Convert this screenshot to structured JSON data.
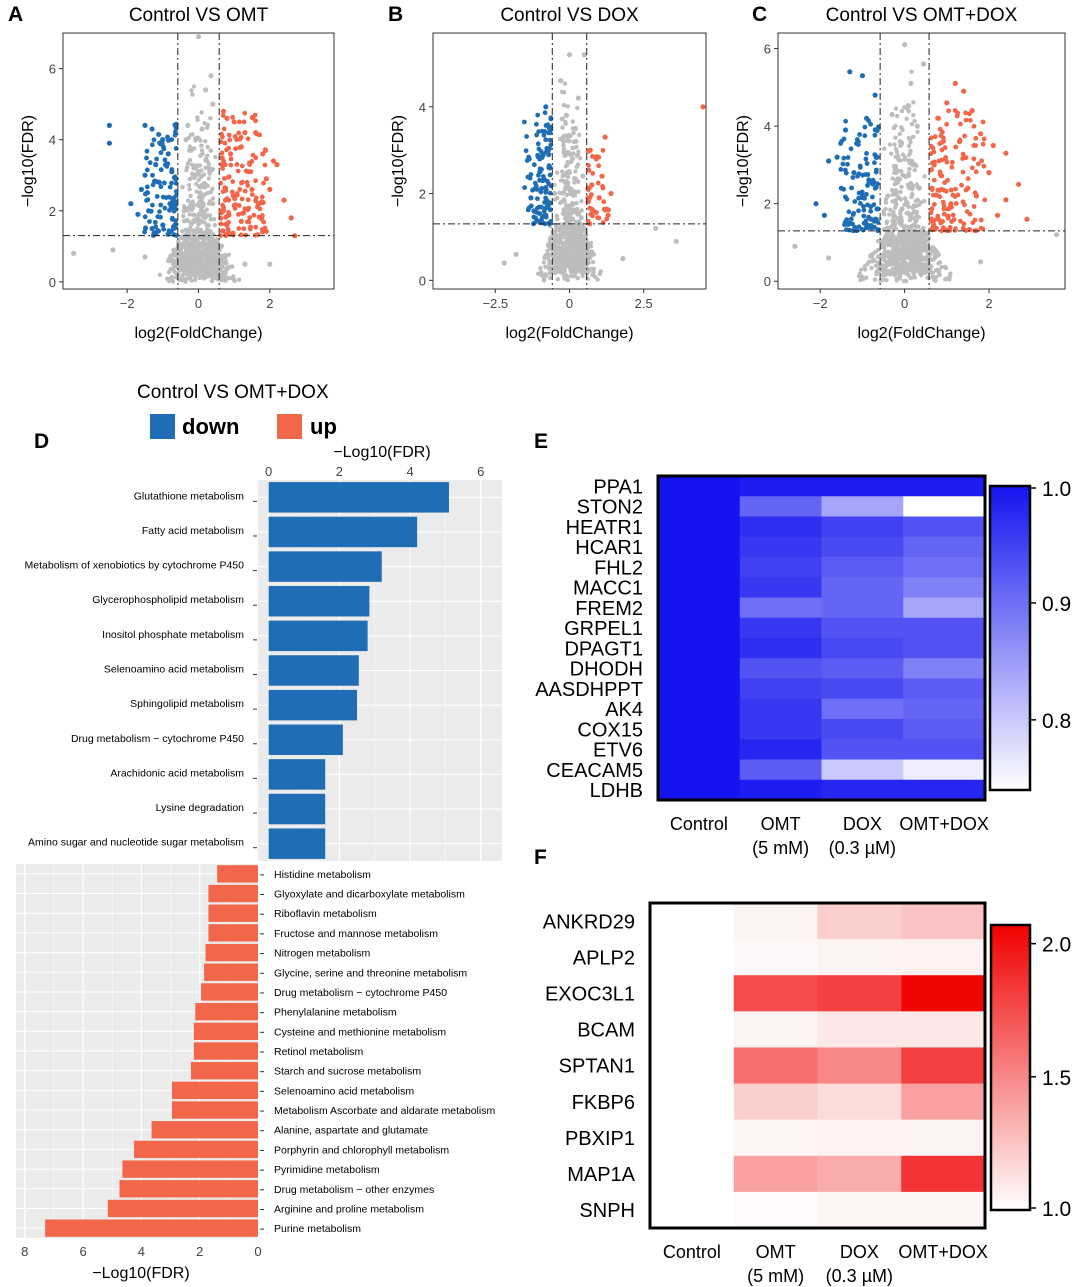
{
  "colors": {
    "down": "#1f6eb5",
    "up": "#f26649",
    "ns": "#bdbdbd",
    "panel": "#ebebeb",
    "heat_blue": "#1414f0",
    "heat_red": "#f00000"
  },
  "volcano_labels": {
    "xlabel": "log2(FoldChange)",
    "ylabel": "−log10(FDR)"
  },
  "panel_letters": {
    "A": "A",
    "B": "B",
    "C": "C",
    "D": "D",
    "E": "E",
    "F": "F"
  },
  "chart_data": [
    {
      "panel": "A",
      "type": "scatter",
      "title": "Control VS OMT",
      "xlim": [
        -3.8,
        3.8
      ],
      "ylim": [
        -0.2,
        7.0
      ],
      "xticks": [
        -2,
        0,
        2
      ],
      "xtick_labels": [
        "−2",
        "0",
        "2"
      ],
      "yticks": [
        0,
        2,
        4,
        6
      ],
      "ytick_labels": [
        "0",
        "2",
        "4",
        "6"
      ],
      "vlines": [
        -0.58,
        0.58
      ],
      "hline": 1.3,
      "points": {
        "down": [
          [
            -2.5,
            4.4
          ],
          [
            -2.5,
            3.9
          ],
          [
            -1.5,
            4.4
          ],
          [
            -1.3,
            4.3
          ],
          [
            -1.0,
            4.0
          ],
          [
            -0.85,
            3.6
          ],
          [
            -1.2,
            3.3
          ],
          [
            -1.6,
            2.6
          ],
          [
            -1.9,
            2.2
          ],
          [
            -1.7,
            1.9
          ],
          [
            -1.4,
            2.0
          ],
          [
            -1.1,
            2.8
          ],
          [
            -0.8,
            2.2
          ],
          [
            -1.0,
            1.6
          ],
          [
            -0.7,
            1.5
          ],
          [
            -1.3,
            1.5
          ],
          [
            -0.65,
            2.9
          ],
          [
            -0.75,
            3.1
          ],
          [
            -1.5,
            3.0
          ]
        ],
        "up": [
          [
            0.7,
            4.8
          ],
          [
            0.8,
            4.6
          ],
          [
            1.0,
            4.5
          ],
          [
            1.3,
            4.2
          ],
          [
            1.6,
            4.2
          ],
          [
            1.2,
            3.8
          ],
          [
            1.8,
            3.6
          ],
          [
            2.1,
            3.4
          ],
          [
            2.2,
            3.3
          ],
          [
            1.9,
            2.9
          ],
          [
            2.4,
            2.3
          ],
          [
            1.7,
            2.2
          ],
          [
            2.6,
            1.8
          ],
          [
            2.7,
            1.3
          ],
          [
            1.5,
            2.6
          ],
          [
            1.0,
            2.4
          ],
          [
            0.8,
            1.6
          ],
          [
            1.2,
            1.7
          ],
          [
            0.7,
            2.0
          ],
          [
            1.4,
            3.1
          ],
          [
            2.0,
            2.6
          ],
          [
            0.65,
            3.3
          ],
          [
            0.9,
            3.6
          ]
        ],
        "ns": [
          [
            0,
            6.9
          ],
          [
            -0.3,
            4.4
          ],
          [
            0.2,
            5.4
          ],
          [
            0.35,
            5.8
          ],
          [
            0.4,
            5.0
          ],
          [
            -0.35,
            4.0
          ],
          [
            0.1,
            4.3
          ],
          [
            -0.25,
            3.7
          ],
          [
            0.3,
            3.2
          ],
          [
            -0.1,
            3.0
          ],
          [
            0.05,
            2.5
          ],
          [
            -3.5,
            0.8
          ],
          [
            -2.4,
            0.9
          ],
          [
            2.0,
            0.5
          ],
          [
            -1.5,
            0.7
          ],
          [
            1.3,
            0.5
          ],
          [
            -0.5,
            1.0
          ],
          [
            0.5,
            1.0
          ],
          [
            0.4,
            2.2
          ],
          [
            -0.4,
            2.0
          ]
        ]
      }
    },
    {
      "panel": "B",
      "type": "scatter",
      "title": "Control VS DOX",
      "xlim": [
        -4.6,
        4.6
      ],
      "ylim": [
        -0.2,
        5.7
      ],
      "xticks": [
        -2.5,
        0,
        2.5
      ],
      "xtick_labels": [
        "−2.5",
        "0",
        "2.5"
      ],
      "yticks": [
        0,
        2,
        4
      ],
      "ytick_labels": [
        "0",
        "2",
        "4"
      ],
      "vlines": [
        -0.58,
        0.58
      ],
      "hline": 1.3,
      "points": {
        "down": [
          [
            -0.8,
            4.0
          ],
          [
            -0.7,
            2.9
          ],
          [
            -1.0,
            2.8
          ],
          [
            -0.9,
            2.3
          ],
          [
            -1.3,
            1.9
          ],
          [
            -1.2,
            1.6
          ],
          [
            -0.8,
            1.5
          ],
          [
            -1.0,
            2.5
          ],
          [
            -0.65,
            2.6
          ],
          [
            -1.1,
            2.1
          ],
          [
            -0.75,
            1.7
          ]
        ],
        "up": [
          [
            0.7,
            3.0
          ],
          [
            0.9,
            2.8
          ],
          [
            1.2,
            3.3
          ],
          [
            1.1,
            2.4
          ],
          [
            1.4,
            2.0
          ],
          [
            1.0,
            1.9
          ],
          [
            0.8,
            1.6
          ],
          [
            1.3,
            1.5
          ],
          [
            4.5,
            4.0
          ],
          [
            0.75,
            2.2
          ]
        ],
        "ns": [
          [
            0,
            5.2
          ],
          [
            0.5,
            5.2
          ],
          [
            -0.3,
            4.6
          ],
          [
            -0.1,
            3.8
          ],
          [
            0.2,
            3.5
          ],
          [
            0.3,
            4.2
          ],
          [
            -0.2,
            3.2
          ],
          [
            0.1,
            2.8
          ],
          [
            2.9,
            1.2
          ],
          [
            3.6,
            0.9
          ],
          [
            -2.2,
            0.4
          ],
          [
            -1.8,
            0.6
          ],
          [
            1.8,
            0.5
          ],
          [
            -0.4,
            1.0
          ],
          [
            0.4,
            1.0
          ],
          [
            -0.5,
            2.0
          ],
          [
            0.45,
            2.4
          ],
          [
            0.05,
            2.1
          ]
        ]
      }
    },
    {
      "panel": "C",
      "type": "scatter",
      "title": "Control VS OMT+DOX",
      "xlim": [
        -3.0,
        3.8
      ],
      "ylim": [
        -0.2,
        6.4
      ],
      "xticks": [
        -2,
        0,
        2
      ],
      "xtick_labels": [
        "−2",
        "0",
        "2"
      ],
      "yticks": [
        0,
        2,
        4,
        6
      ],
      "ytick_labels": [
        "0",
        "2",
        "4",
        "6"
      ],
      "vlines": [
        -0.58,
        0.58
      ],
      "hline": 1.3,
      "points": {
        "down": [
          [
            -1.3,
            5.4
          ],
          [
            -1.0,
            5.3
          ],
          [
            -0.7,
            4.8
          ],
          [
            -0.9,
            4.2
          ],
          [
            -1.4,
            3.9
          ],
          [
            -1.6,
            3.2
          ],
          [
            -1.8,
            3.1
          ],
          [
            -1.2,
            2.8
          ],
          [
            -2.1,
            2.0
          ],
          [
            -1.5,
            2.4
          ],
          [
            -1.0,
            2.2
          ],
          [
            -0.8,
            1.6
          ],
          [
            -1.9,
            1.7
          ],
          [
            -0.65,
            3.2
          ],
          [
            -1.1,
            3.6
          ],
          [
            -0.75,
            2.6
          ],
          [
            -1.3,
            1.5
          ]
        ],
        "up": [
          [
            1.2,
            5.1
          ],
          [
            1.4,
            4.9
          ],
          [
            1.0,
            4.6
          ],
          [
            1.6,
            4.4
          ],
          [
            0.8,
            4.2
          ],
          [
            1.8,
            3.8
          ],
          [
            2.1,
            3.5
          ],
          [
            2.4,
            3.3
          ],
          [
            2.0,
            2.8
          ],
          [
            2.7,
            2.5
          ],
          [
            2.4,
            2.1
          ],
          [
            2.9,
            1.6
          ],
          [
            1.5,
            2.4
          ],
          [
            1.1,
            2.0
          ],
          [
            0.8,
            1.6
          ],
          [
            1.7,
            2.2
          ],
          [
            2.2,
            1.7
          ],
          [
            0.7,
            3.0
          ],
          [
            1.3,
            3.6
          ],
          [
            0.65,
            2.4
          ]
        ],
        "ns": [
          [
            0,
            6.1
          ],
          [
            0.45,
            5.6
          ],
          [
            0.15,
            5.1
          ],
          [
            -0.3,
            4.3
          ],
          [
            0.3,
            4.0
          ],
          [
            -0.1,
            3.6
          ],
          [
            0.2,
            3.0
          ],
          [
            -0.2,
            2.8
          ],
          [
            3.6,
            1.2
          ],
          [
            -2.6,
            0.9
          ],
          [
            -1.8,
            0.6
          ],
          [
            1.8,
            0.5
          ],
          [
            -0.45,
            1.0
          ],
          [
            0.45,
            1.1
          ],
          [
            -0.4,
            2.2
          ],
          [
            0.35,
            2.4
          ]
        ]
      }
    },
    {
      "panel": "D-down",
      "type": "bar",
      "orientation": "horizontal",
      "title": "Control VS OMT+DOX",
      "xlabel": "−Log10(FDR)",
      "xlim": [
        -0.3,
        6.6
      ],
      "xticks": [
        0,
        2,
        4,
        6
      ],
      "xtick_labels": [
        "0",
        "2",
        "4",
        "6"
      ],
      "legend": [
        {
          "name": "down",
          "color": "#1f6eb5"
        },
        {
          "name": "up",
          "color": "#f26649"
        }
      ],
      "categories": [
        "Glutathione metabolism",
        "Fatty acid metabolism",
        "Metabolism of xenobiotics by cytochrome P450",
        "Glycerophospholipid metabolism",
        "Inositol phosphate metabolism",
        "Selenoamino acid metabolism",
        "Sphingolipid metabolism",
        "Drug metabolism − cytochrome P450",
        "Arachidonic acid metabolism",
        "Lysine degradation",
        "Amino sugar and nucleotide sugar metabolism"
      ],
      "values": [
        5.1,
        4.2,
        3.2,
        2.85,
        2.8,
        2.55,
        2.5,
        2.1,
        1.6,
        1.6,
        1.6
      ]
    },
    {
      "panel": "D-up",
      "type": "bar",
      "orientation": "horizontal",
      "reversed_axis": true,
      "xlabel": "−Log10(FDR)",
      "xlim": [
        0,
        8.3
      ],
      "xticks": [
        8,
        6,
        4,
        2,
        0
      ],
      "xtick_labels": [
        "8",
        "6",
        "4",
        "2",
        "0"
      ],
      "categories": [
        "Histidine metabolism",
        "Glyoxylate and dicarboxylate metabolism",
        "Riboflavin metabolism",
        "Fructose and mannose metabolism",
        "Nitrogen metabolism",
        "Glycine, serine and threonine metabolism",
        "Drug metabolism − cytochrome P450",
        "Phenylalanine metabolism",
        "Cysteine and methionine metabolism",
        "Retinol metabolism",
        "Starch and sucrose metabolism",
        "Selenoamino acid metabolism",
        "Metabolism Ascorbate and aldarate  metabolism",
        "Alanine, aspartate and glutamate",
        "Porphyrin and chlorophyll metabolism",
        "Pyrimidine metabolism",
        "Drug metabolism − other enzymes",
        "Arginine and proline metabolism",
        "Purine metabolism"
      ],
      "values": [
        1.4,
        1.7,
        1.7,
        1.7,
        1.8,
        1.85,
        1.95,
        2.15,
        2.2,
        2.2,
        2.3,
        2.95,
        2.95,
        3.65,
        4.25,
        4.65,
        4.75,
        5.15,
        7.3
      ]
    },
    {
      "panel": "E",
      "type": "heatmap",
      "rows": [
        "PPA1",
        "STON2",
        "HEATR1",
        "HCAR1",
        "FHL2",
        "MACC1",
        "FREM2",
        "GRPEL1",
        "DPAGT1",
        "DHODH",
        "AASDHPPT",
        "AK4",
        "COX15",
        "ETV6",
        "CEACAM5",
        "LDHB"
      ],
      "columns": [
        "Control",
        "OMT\n(5 mM)",
        "DOX\n(0.3 µM)",
        "OMT+DOX"
      ],
      "values": [
        [
          1.0,
          0.99,
          0.99,
          0.99
        ],
        [
          1.0,
          0.91,
          0.84,
          0.74
        ],
        [
          1.0,
          0.97,
          0.95,
          0.93
        ],
        [
          1.0,
          0.96,
          0.94,
          0.91
        ],
        [
          1.0,
          0.95,
          0.92,
          0.9
        ],
        [
          1.0,
          0.96,
          0.91,
          0.88
        ],
        [
          1.0,
          0.9,
          0.91,
          0.84
        ],
        [
          1.0,
          0.96,
          0.93,
          0.93
        ],
        [
          1.0,
          0.97,
          0.94,
          0.93
        ],
        [
          1.0,
          0.93,
          0.92,
          0.88
        ],
        [
          1.0,
          0.95,
          0.94,
          0.92
        ],
        [
          1.0,
          0.96,
          0.9,
          0.91
        ],
        [
          1.0,
          0.96,
          0.94,
          0.92
        ],
        [
          1.0,
          0.98,
          0.93,
          0.93
        ],
        [
          1.0,
          0.92,
          0.8,
          0.76
        ],
        [
          1.0,
          0.99,
          0.98,
          0.98
        ]
      ],
      "colorbar": {
        "min": 0.74,
        "max": 1.0,
        "ticks": [
          1.0,
          0.9,
          0.8
        ],
        "tick_labels": [
          "1.0",
          "0.9",
          "0.8"
        ]
      }
    },
    {
      "panel": "F",
      "type": "heatmap",
      "rows": [
        "ANKRD29",
        "APLP2",
        "EXOC3L1",
        "BCAM",
        "SPTAN1",
        "FKBP6",
        "PBXIP1",
        "MAP1A",
        "SNPH"
      ],
      "columns": [
        "Control",
        "OMT\n(5 mM)",
        "DOX\n(0.3 µM)",
        "OMT+DOX"
      ],
      "values": [
        [
          1.0,
          1.05,
          1.2,
          1.25
        ],
        [
          1.0,
          1.03,
          1.05,
          1.06
        ],
        [
          1.0,
          1.75,
          1.8,
          2.05
        ],
        [
          1.0,
          1.05,
          1.1,
          1.1
        ],
        [
          1.0,
          1.6,
          1.5,
          1.8
        ],
        [
          1.0,
          1.2,
          1.15,
          1.4
        ],
        [
          1.0,
          1.04,
          1.06,
          1.05
        ],
        [
          1.0,
          1.4,
          1.35,
          1.85
        ],
        [
          1.0,
          1.02,
          1.04,
          1.04
        ]
      ],
      "colorbar": {
        "min": 1.0,
        "max": 2.07,
        "ticks": [
          2.0,
          1.5,
          1.0
        ],
        "tick_labels": [
          "2.0",
          "1.5",
          "1.0"
        ]
      }
    }
  ]
}
